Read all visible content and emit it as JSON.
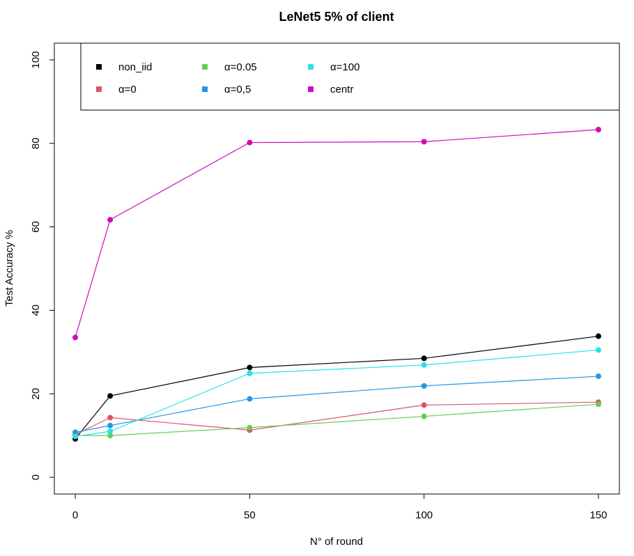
{
  "chart_data": {
    "type": "line",
    "title": "LeNet5 5% of client",
    "xlabel": "N° of round",
    "ylabel": "Test Accuracy %",
    "x": [
      0,
      10,
      50,
      100,
      150
    ],
    "xticks": [
      "0",
      "50",
      "100",
      "150"
    ],
    "xtick_values": [
      0,
      50,
      100,
      150
    ],
    "yticks": [
      "0",
      "20",
      "40",
      "60",
      "80",
      "100"
    ],
    "ytick_values": [
      0,
      20,
      40,
      60,
      80,
      100
    ],
    "xlim": [
      -6,
      156
    ],
    "ylim": [
      -4,
      104
    ],
    "grid": false,
    "legend_position": "top",
    "series": [
      {
        "name": "non_iid",
        "color": "#000000",
        "values": [
          9.2,
          19.5,
          26.3,
          28.5,
          33.8
        ]
      },
      {
        "name": "α=0",
        "color": "#DF536B",
        "values": [
          10.2,
          14.3,
          11.3,
          17.3,
          18.0
        ]
      },
      {
        "name": "α=0.05",
        "color": "#61D04F",
        "values": [
          10.0,
          10.0,
          11.9,
          14.6,
          17.5
        ]
      },
      {
        "name": "α=0,5",
        "color": "#2297E6",
        "values": [
          10.8,
          12.4,
          18.8,
          21.9,
          24.2
        ]
      },
      {
        "name": "α=100",
        "color": "#28E2E5",
        "values": [
          9.8,
          11.0,
          24.9,
          26.9,
          30.5
        ]
      },
      {
        "name": "centr",
        "color": "#CD0BBC",
        "values": [
          33.5,
          61.7,
          80.2,
          80.4,
          83.3
        ]
      }
    ]
  }
}
